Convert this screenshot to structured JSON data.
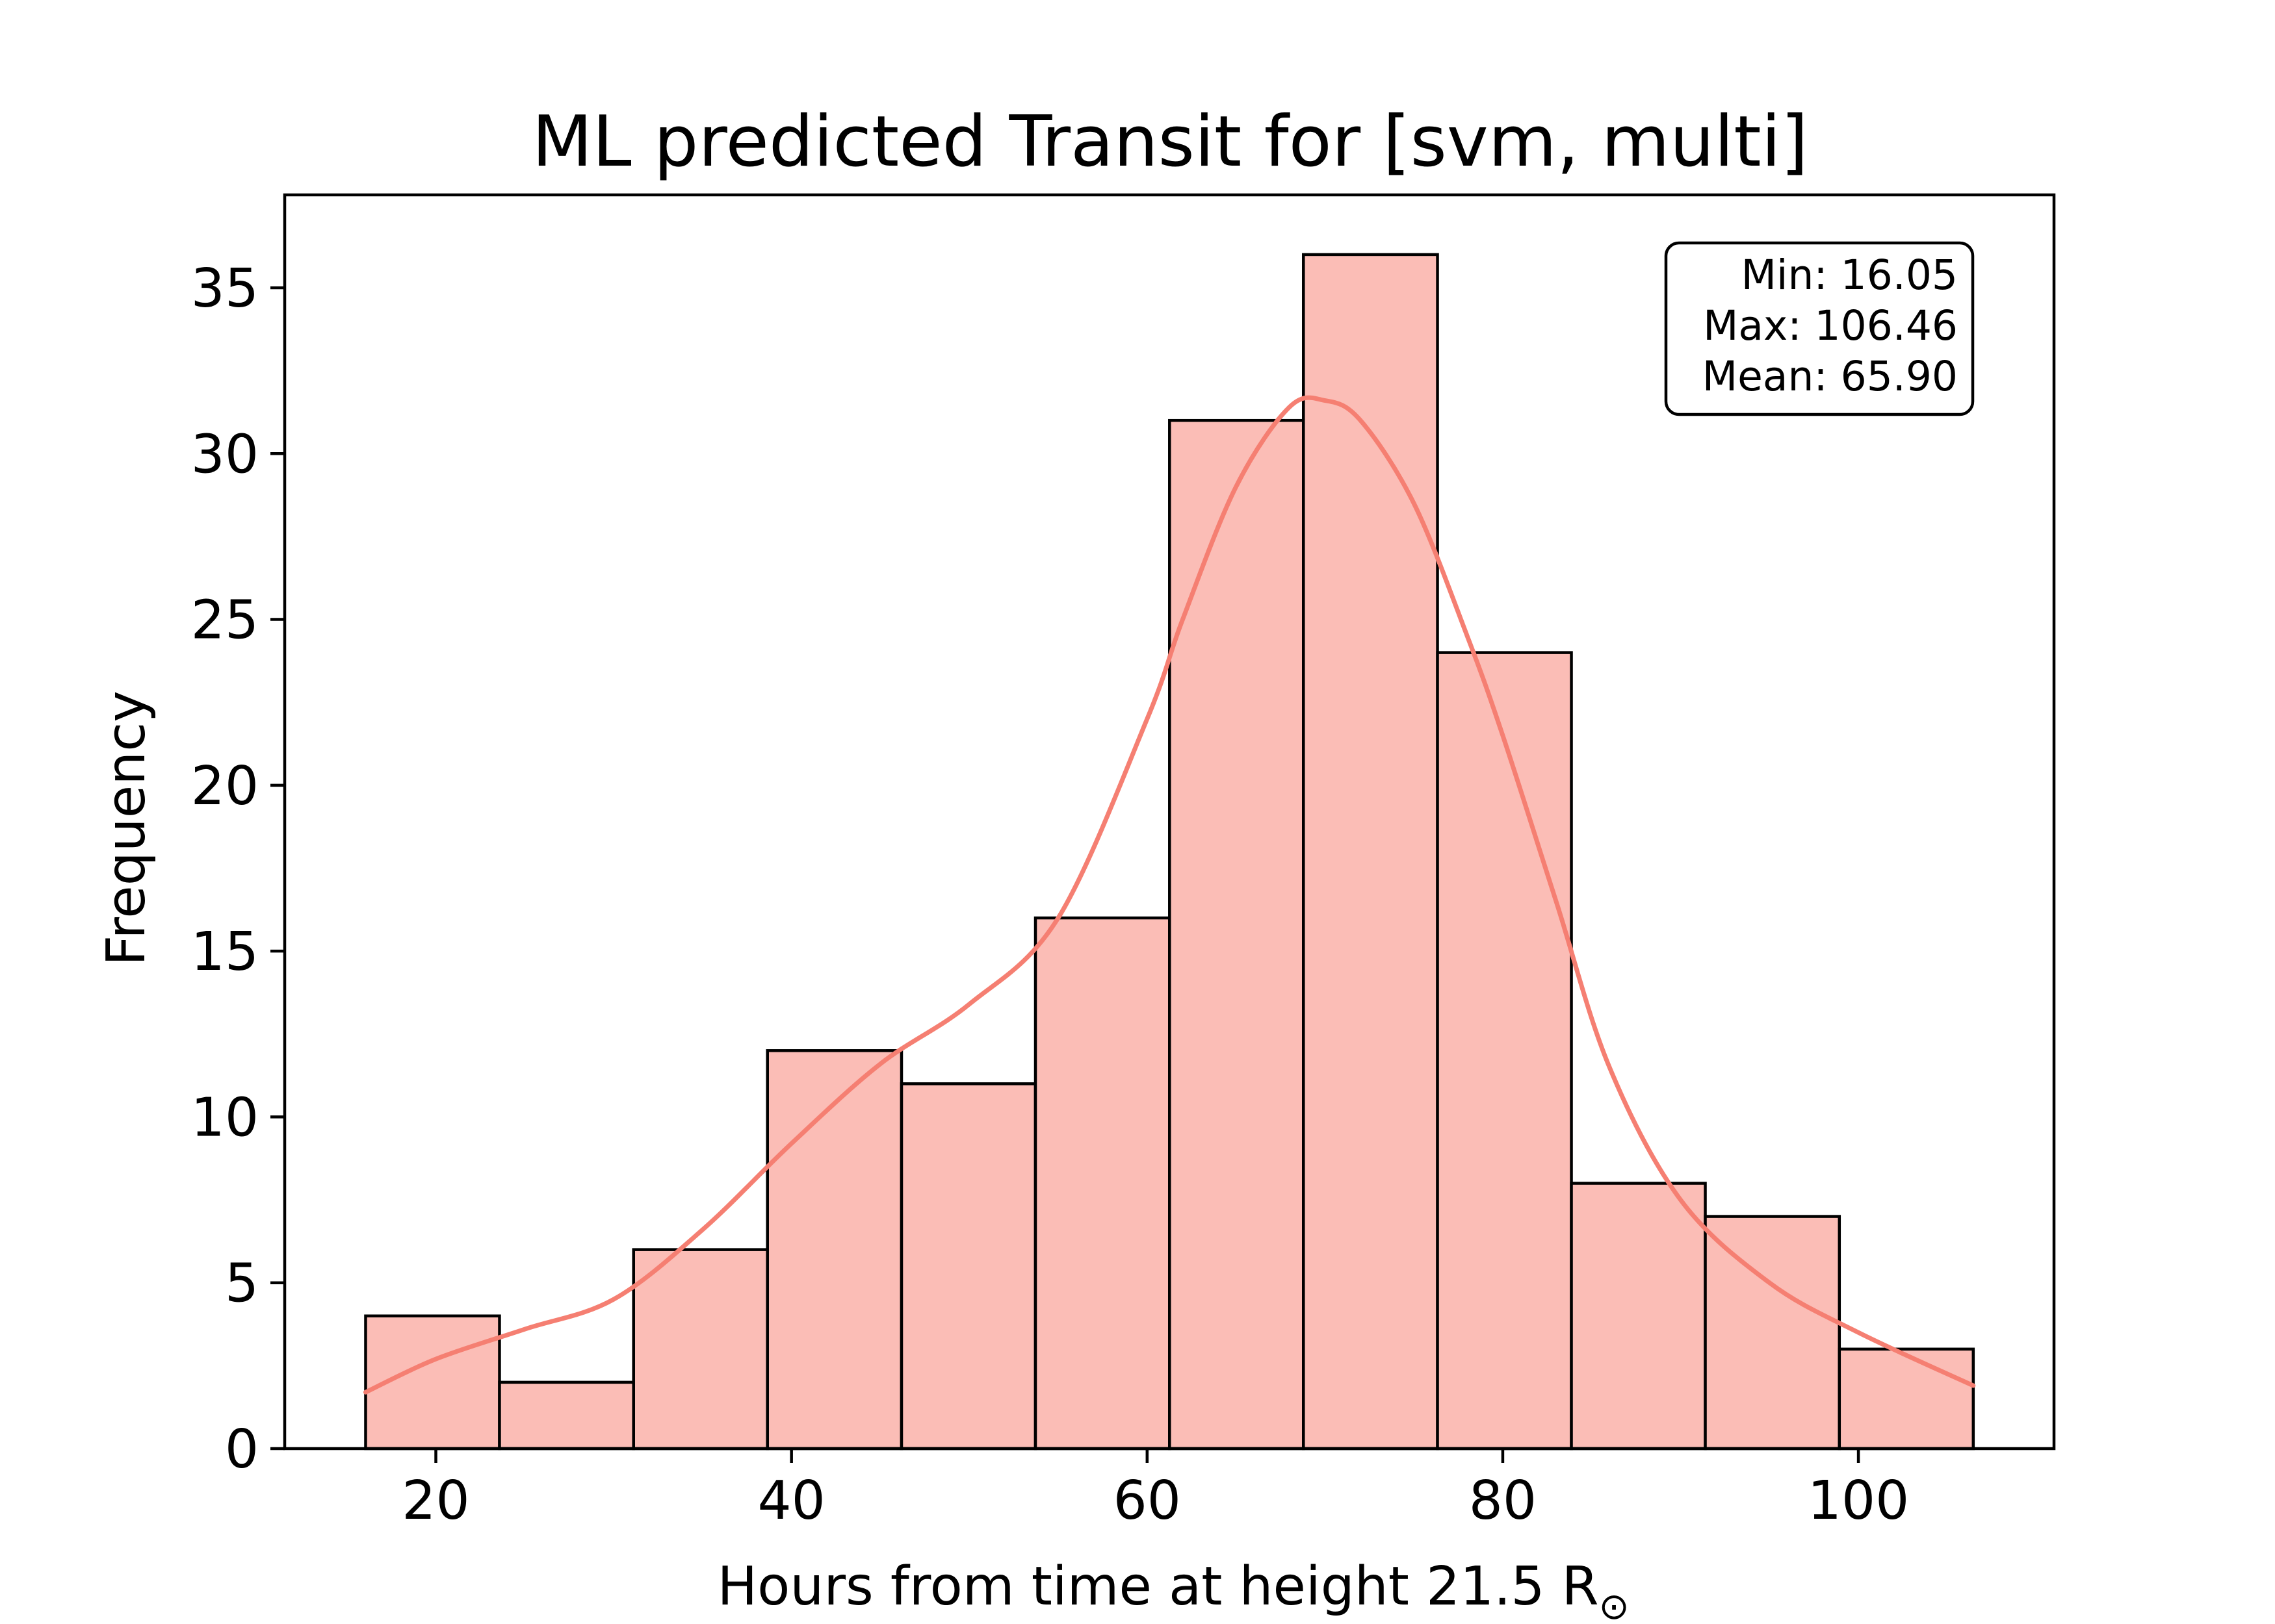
{
  "chart_data": {
    "type": "bar",
    "title": "ML predicted Transit for [svm, multi]",
    "xlabel": "Hours from time at height 21.5 R",
    "xlabel_symbol": "⊙",
    "ylabel": "Frequency",
    "xlim": [
      11.5,
      111.0
    ],
    "ylim": [
      0,
      37.8
    ],
    "xticks": [
      20,
      40,
      60,
      80,
      100
    ],
    "yticks": [
      0,
      5,
      10,
      15,
      20,
      25,
      30,
      35
    ],
    "grid": false,
    "bins": [
      {
        "x0": 16.05,
        "x1": 23.58,
        "count": 4
      },
      {
        "x0": 23.58,
        "x1": 31.12,
        "count": 2
      },
      {
        "x0": 31.12,
        "x1": 38.65,
        "count": 6
      },
      {
        "x0": 38.65,
        "x1": 46.19,
        "count": 12
      },
      {
        "x0": 46.19,
        "x1": 53.72,
        "count": 11
      },
      {
        "x0": 53.72,
        "x1": 61.26,
        "count": 16
      },
      {
        "x0": 61.26,
        "x1": 68.79,
        "count": 31
      },
      {
        "x0": 68.79,
        "x1": 76.33,
        "count": 36
      },
      {
        "x0": 76.33,
        "x1": 83.86,
        "count": 24
      },
      {
        "x0": 83.86,
        "x1": 91.39,
        "count": 8
      },
      {
        "x0": 91.39,
        "x1": 98.93,
        "count": 7
      },
      {
        "x0": 98.93,
        "x1": 106.46,
        "count": 3
      }
    ],
    "kde": {
      "x": [
        16.05,
        20,
        25,
        30,
        35,
        40,
        45,
        50,
        55,
        60,
        62,
        65,
        68,
        70,
        72,
        75,
        78,
        80,
        83,
        86,
        90,
        95,
        100,
        106.46
      ],
      "y": [
        1.7,
        2.7,
        3.6,
        4.5,
        6.6,
        9.2,
        11.6,
        13.4,
        16.0,
        22.0,
        25.0,
        29.0,
        31.4,
        31.6,
        31.0,
        28.5,
        24.5,
        21.5,
        16.5,
        11.5,
        7.5,
        5.0,
        3.5,
        1.9
      ]
    },
    "stats": {
      "min": "Min: 16.05",
      "max": "Max: 106.46",
      "mean": "Mean: 65.90"
    },
    "colors": {
      "bar_fill": "#fbbdb6",
      "bar_edge": "#000000",
      "kde_line": "#f57f72"
    }
  }
}
